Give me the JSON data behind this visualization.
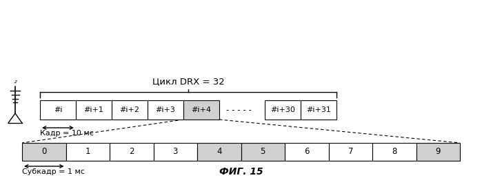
{
  "title_drx": "Цикл DRX = 32",
  "frame_label": "Кадр = 10 мс",
  "subframe_label": "Субкадр = 1 мс",
  "fig_label": "ФИГ. 15",
  "upper_frames_left": [
    "#i",
    "#i+1",
    "#i+2",
    "#i+3",
    "#i+4"
  ],
  "upper_frames_right": [
    "#i+30",
    "#i+31"
  ],
  "upper_shaded_left": [
    4
  ],
  "lower_frames": [
    "0",
    "1",
    "2",
    "3",
    "4",
    "5",
    "6",
    "7",
    "8",
    "9"
  ],
  "lower_shaded": [
    0,
    4,
    5,
    9
  ],
  "bg_color": "#ffffff",
  "box_color": "#ffffff",
  "shaded_color": "#d0d0d0",
  "text_color": "#000000",
  "line_color": "#000000"
}
